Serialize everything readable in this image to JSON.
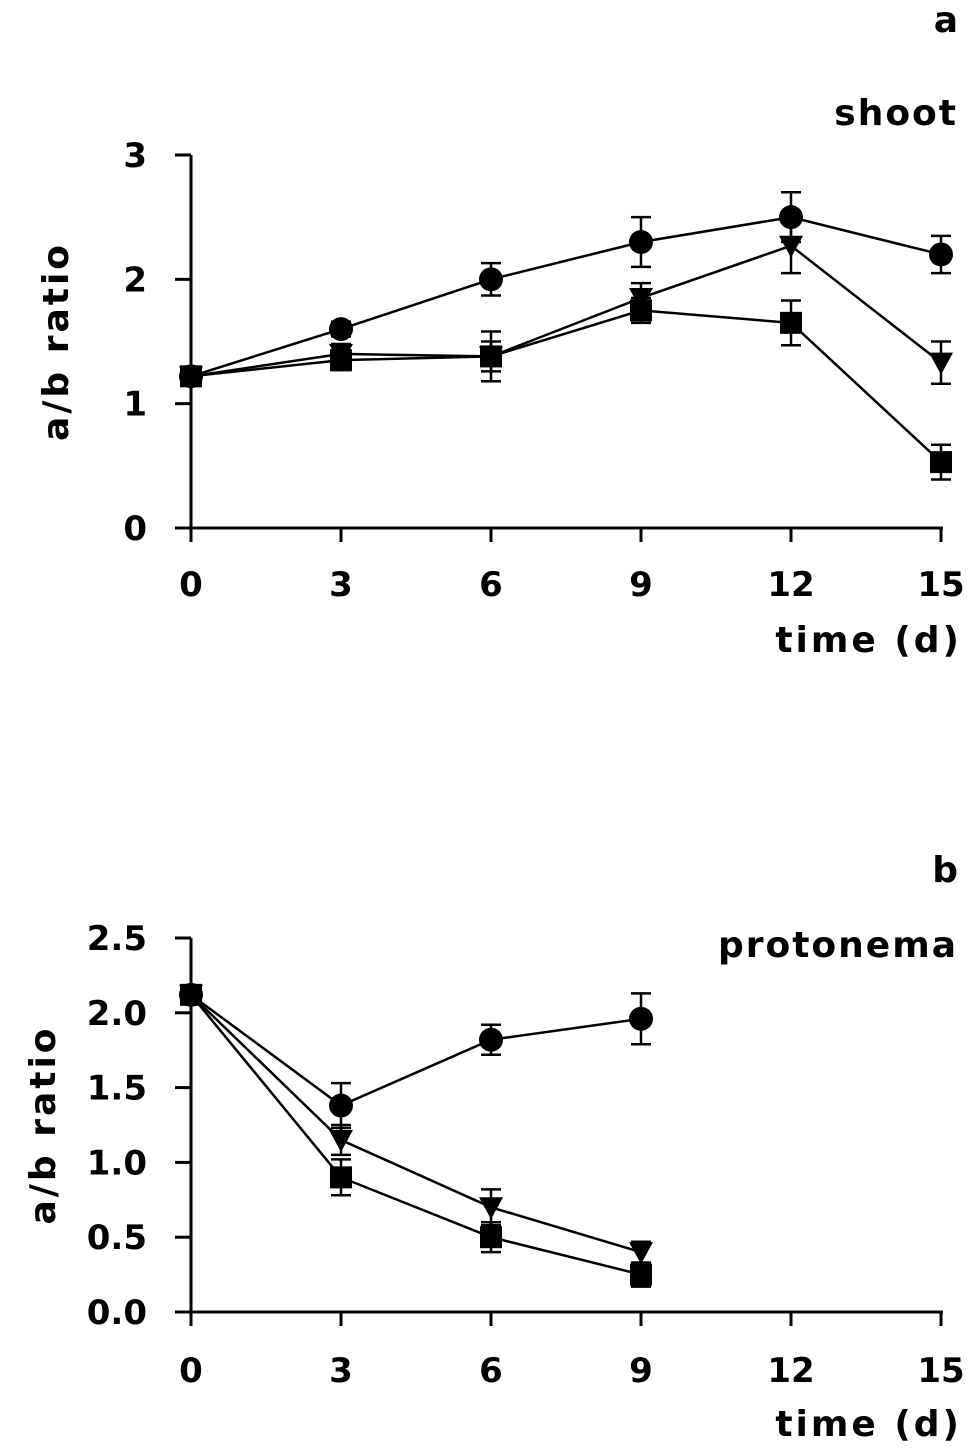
{
  "chart_data": [
    {
      "type": "line",
      "panel_letter": "a",
      "title": "shoot",
      "xlabel": "time (d)",
      "ylabel": "a/b ratio",
      "xlim": [
        0,
        15
      ],
      "ylim": [
        0,
        3
      ],
      "xticks": [
        0,
        3,
        6,
        9,
        12,
        15
      ],
      "yticks": [
        0,
        1,
        2,
        3
      ],
      "ytick_labels": [
        "0",
        "1",
        "2",
        "3"
      ],
      "grid": false,
      "legend": "none",
      "x": [
        0,
        3,
        6,
        9,
        12,
        15
      ],
      "series": [
        {
          "marker": "circle",
          "values": [
            1.22,
            1.6,
            2.0,
            2.3,
            2.5,
            2.2
          ],
          "errors": [
            0.06,
            0.06,
            0.13,
            0.2,
            0.2,
            0.15
          ]
        },
        {
          "marker": "triangle-down",
          "values": [
            1.22,
            1.4,
            1.38,
            1.85,
            2.27,
            1.33
          ],
          "errors": [
            0.05,
            0.08,
            0.2,
            0.12,
            0.22,
            0.17
          ]
        },
        {
          "marker": "square",
          "values": [
            1.22,
            1.35,
            1.38,
            1.75,
            1.65,
            0.53
          ],
          "errors": [
            0.05,
            0.08,
            0.12,
            0.1,
            0.18,
            0.14
          ]
        }
      ]
    },
    {
      "type": "line",
      "panel_letter": "b",
      "title": "protonema",
      "xlabel": "time (d)",
      "ylabel": "a/b ratio",
      "xlim": [
        0,
        15
      ],
      "ylim": [
        0,
        2.5
      ],
      "xticks": [
        0,
        3,
        6,
        9,
        12,
        15
      ],
      "yticks": [
        0,
        0.5,
        1.0,
        1.5,
        2.0,
        2.5
      ],
      "ytick_labels": [
        "0.0",
        "0.5",
        "1.0",
        "1.5",
        "2.0",
        "2.5"
      ],
      "grid": false,
      "legend": "none",
      "x": [
        0,
        3,
        6,
        9
      ],
      "series": [
        {
          "marker": "circle",
          "values": [
            2.12,
            1.38,
            1.82,
            1.96
          ],
          "errors": [
            0.04,
            0.15,
            0.1,
            0.17
          ]
        },
        {
          "marker": "triangle-down",
          "values": [
            2.12,
            1.15,
            0.7,
            0.4
          ],
          "errors": [
            0.04,
            0.1,
            0.12,
            0.07
          ]
        },
        {
          "marker": "square",
          "values": [
            2.12,
            0.9,
            0.5,
            0.25
          ],
          "errors": [
            0.04,
            0.12,
            0.1,
            0.08
          ]
        }
      ]
    }
  ]
}
